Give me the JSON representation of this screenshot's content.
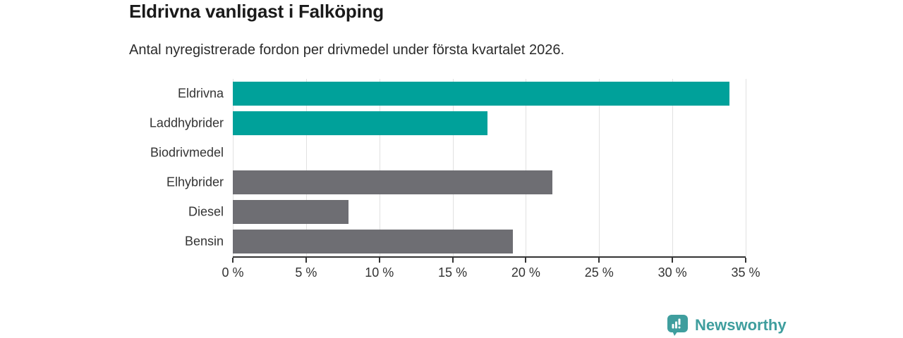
{
  "header": {
    "title": "Eldrivna vanligast i Falköping",
    "subtitle": "Antal nyregistrerade fordon per drivmedel under första kvartalet 2026."
  },
  "chart_data": {
    "type": "bar",
    "orientation": "horizontal",
    "title": "Eldrivna vanligast i Falköping",
    "subtitle": "Antal nyregistrerade fordon per drivmedel under första kvartalet 2026.",
    "categories": [
      "Eldrivna",
      "Laddhybrider",
      "Biodrivmedel",
      "Elhybrider",
      "Diesel",
      "Bensin"
    ],
    "values": [
      33.9,
      17.4,
      0,
      21.8,
      7.9,
      19.1
    ],
    "unit": "%",
    "xlim": [
      0,
      35
    ],
    "x_ticks": [
      0,
      5,
      10,
      15,
      20,
      25,
      30,
      35
    ],
    "x_tick_labels": [
      "0 %",
      "5 %",
      "10 %",
      "15 %",
      "20 %",
      "25 %",
      "30 %",
      "35 %"
    ],
    "bar_colors": [
      "#00a19a",
      "#00a19a",
      "#6e6e73",
      "#6e6e73",
      "#6e6e73",
      "#6e6e73"
    ],
    "highlight_color": "#00a19a",
    "default_color": "#6e6e73",
    "grid": "vertical",
    "gridline_color": "#e1e1e1",
    "axis_color": "#333333",
    "legend": "none"
  },
  "footer": {
    "brand": "Newsworthy",
    "brand_color": "#3f9e9e",
    "brand_icon": "newsworthy-chart-bubble-icon"
  }
}
